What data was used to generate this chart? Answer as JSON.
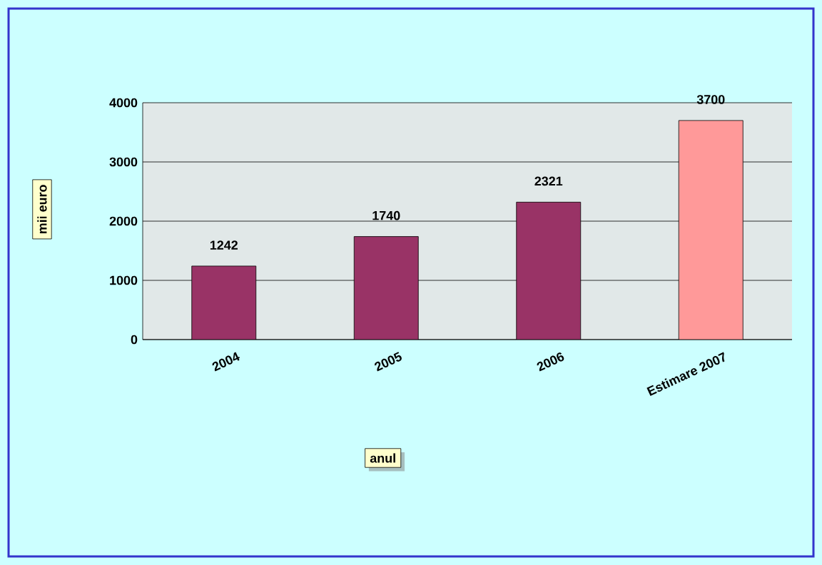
{
  "chart_data": {
    "type": "bar",
    "categories": [
      "2004",
      "2005",
      "2006",
      "Estimare 2007"
    ],
    "values": [
      1242,
      1740,
      2321,
      3700
    ],
    "colors": [
      "#993366",
      "#993366",
      "#993366",
      "#ff9999"
    ],
    "xlabel": "anul",
    "ylabel": "mii euro",
    "ylim": [
      0,
      4000
    ],
    "yticks": [
      0,
      1000,
      2000,
      3000,
      4000
    ],
    "grid": "y",
    "data_labels": true
  }
}
